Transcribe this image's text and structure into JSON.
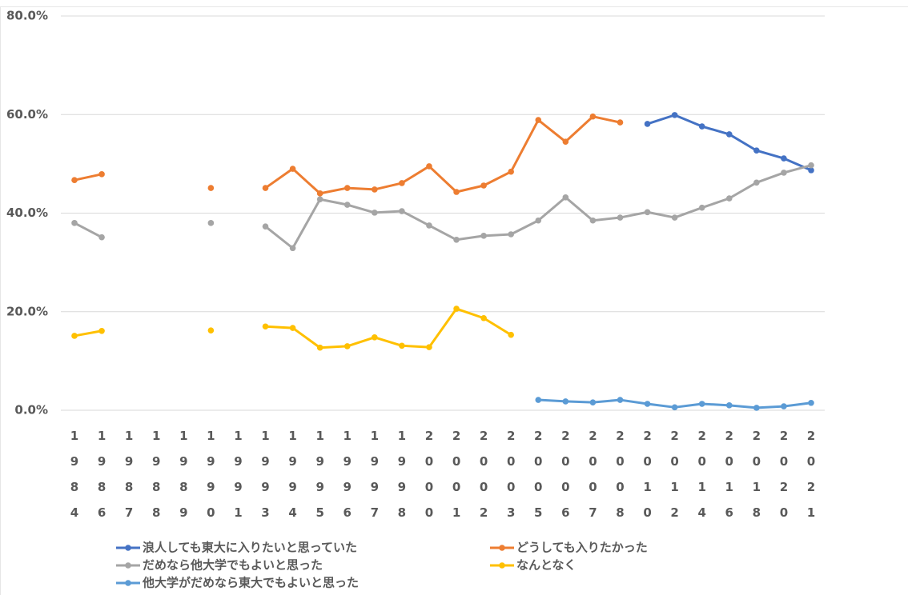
{
  "chart_data": {
    "type": "line",
    "categories": [
      "1984",
      "1986",
      "1987",
      "1988",
      "1989",
      "1990",
      "1991",
      "1993",
      "1994",
      "1995",
      "1996",
      "1997",
      "1998",
      "2000",
      "2001",
      "2002",
      "2003",
      "2005",
      "2006",
      "2007",
      "2008",
      "2010",
      "2012",
      "2014",
      "2016",
      "2018",
      "2020",
      "2021"
    ],
    "series": [
      {
        "name": "浪人しても東大に入りたいと思っていた",
        "color": "#4472c4",
        "values": [
          null,
          null,
          null,
          null,
          null,
          null,
          null,
          null,
          null,
          null,
          null,
          null,
          null,
          null,
          null,
          null,
          null,
          null,
          null,
          null,
          null,
          58.1,
          59.9,
          57.6,
          56.0,
          52.7,
          51.1,
          48.7
        ]
      },
      {
        "name": "どうしても入りたかった",
        "color": "#ed7d31",
        "values": [
          46.7,
          47.9,
          null,
          null,
          null,
          45.1,
          null,
          45.1,
          49.0,
          44.0,
          45.1,
          44.8,
          46.1,
          49.5,
          44.3,
          45.6,
          48.4,
          58.9,
          54.5,
          59.6,
          58.4,
          null,
          null,
          null,
          null,
          null,
          null,
          null
        ]
      },
      {
        "name": "だめなら他大学でもよいと思った",
        "color": "#a5a5a5",
        "values": [
          38.0,
          35.1,
          null,
          null,
          null,
          38.0,
          null,
          37.3,
          32.9,
          42.8,
          41.7,
          40.1,
          40.4,
          37.5,
          34.6,
          35.4,
          35.7,
          38.5,
          43.2,
          38.5,
          39.1,
          40.2,
          39.1,
          41.1,
          43.0,
          46.2,
          48.2,
          49.7
        ]
      },
      {
        "name": "なんとなく",
        "color": "#ffc000",
        "values": [
          15.1,
          16.1,
          null,
          null,
          null,
          16.2,
          null,
          17.0,
          16.7,
          12.7,
          13.0,
          14.8,
          13.1,
          12.8,
          20.6,
          18.7,
          15.3,
          null,
          null,
          null,
          null,
          null,
          null,
          null,
          null,
          null,
          null,
          null
        ]
      },
      {
        "name": "他大学がだめなら東大でもよいと思った",
        "color": "#5b9bd5",
        "values": [
          null,
          null,
          null,
          null,
          null,
          null,
          null,
          null,
          null,
          null,
          null,
          null,
          null,
          null,
          null,
          null,
          null,
          2.1,
          1.8,
          1.6,
          2.1,
          1.3,
          0.6,
          1.3,
          1.0,
          0.5,
          0.8,
          1.5
        ]
      }
    ],
    "ylim": [
      0,
      80
    ],
    "yticks": [
      {
        "value": 0,
        "label": "0.0%"
      },
      {
        "value": 20,
        "label": "20.0%"
      },
      {
        "value": 40,
        "label": "40.0%"
      },
      {
        "value": 60,
        "label": "60.0%"
      },
      {
        "value": 80,
        "label": "80.0%"
      }
    ],
    "grid": true
  }
}
